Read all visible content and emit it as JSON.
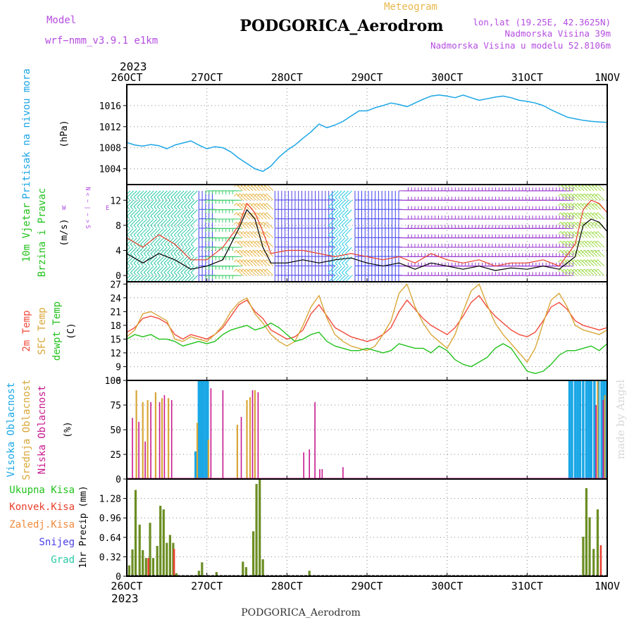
{
  "header": {
    "model_label": "Model",
    "model_name": "wrf−nmm_v3.9.1 e1km",
    "station_title": "PODGORICA_Aerodrom",
    "meteogram_label": "Meteogram",
    "coords": "lon,lat (19.25E, 42.3625N)",
    "elevation": "Nadmorska Visina 39m",
    "model_elevation": "Nadmorska Visina u modelu 52.8106m",
    "year_top": "2023",
    "year_bottom": "2023",
    "footer_station": "PODGORICA_Aerodrom",
    "watermark": "made by Angel"
  },
  "colors": {
    "pressure": "#1ca6e6",
    "t2m": "#f24b3c",
    "sfc": "#d9a637",
    "dewpt": "#22c21c",
    "high_cloud": "#1aa7e6",
    "mid_cloud": "#d9a637",
    "low_cloud": "#c8198f",
    "total_precip": "#6b8e23",
    "conv_precip": "#e8402e",
    "wind_label": "#22c21c",
    "compass": "#b44ce0",
    "header_purple": "#b44ce0",
    "header_orange": "#e8b84d"
  },
  "axes": {
    "x_ticks": [
      "26OCT",
      "27OCT",
      "28OCT",
      "29OCT",
      "30OCT",
      "31OCT",
      "1NOV"
    ]
  },
  "chart_data": [
    {
      "type": "line",
      "name": "pressure",
      "ylabel_lines": [
        "Pritisak na nivou mora",
        "(hPa)"
      ],
      "ylim": [
        1001,
        1020
      ],
      "yticks": [
        1004,
        1008,
        1012,
        1016
      ],
      "x_days": [
        0,
        0.1,
        0.2,
        0.3,
        0.4,
        0.5,
        0.6,
        0.7,
        0.8,
        0.9,
        1.0,
        1.1,
        1.2,
        1.3,
        1.4,
        1.5,
        1.6,
        1.7,
        1.8,
        1.9,
        2.0,
        2.1,
        2.2,
        2.3,
        2.4,
        2.5,
        2.6,
        2.7,
        2.8,
        2.9,
        3.0,
        3.1,
        3.2,
        3.3,
        3.4,
        3.5,
        3.6,
        3.7,
        3.8,
        3.9,
        4.0,
        4.1,
        4.2,
        4.3,
        4.4,
        4.5,
        4.6,
        4.7,
        4.8,
        4.9,
        5.0,
        5.1,
        5.2,
        5.3,
        5.4,
        5.5,
        5.6,
        5.7,
        5.8,
        5.9,
        6.0
      ],
      "values": [
        1009,
        1008.5,
        1008.3,
        1008.6,
        1008.4,
        1007.8,
        1008.5,
        1008.9,
        1009.3,
        1008.5,
        1007.8,
        1008.2,
        1008.0,
        1007.2,
        1006.0,
        1005.0,
        1004.0,
        1003.5,
        1004.5,
        1006.2,
        1007.5,
        1008.5,
        1009.8,
        1011.0,
        1012.5,
        1011.8,
        1012.3,
        1013.0,
        1014.0,
        1015.0,
        1015.0,
        1015.6,
        1016.0,
        1016.5,
        1016.2,
        1015.8,
        1016.5,
        1017.2,
        1017.8,
        1018.0,
        1017.8,
        1017.5,
        1018.0,
        1017.5,
        1017.0,
        1017.3,
        1017.6,
        1017.8,
        1017.5,
        1017.0,
        1016.8,
        1016.5,
        1016.0,
        1015.2,
        1014.5,
        1013.8,
        1013.5,
        1013.2,
        1013.0,
        1012.9,
        1012.8
      ]
    },
    {
      "type": "barbs",
      "name": "wind",
      "ylabel_lines": [
        "10m Vjetar",
        "Brzina i Pravac",
        "(m/s)"
      ],
      "compass": {
        "n": "N",
        "w": "W",
        "e": "E",
        "s": "S",
        "arrows": "< − | − >"
      },
      "ylim": [
        -1,
        14.5
      ],
      "yticks": [
        0,
        4,
        8,
        12
      ],
      "barb_rows_ms": [
        0,
        1.5,
        3,
        4.5,
        6,
        7.5,
        9,
        10.5,
        12,
        13.5
      ],
      "regimes": [
        {
          "x0": 0.0,
          "x1": 0.9,
          "color": "#27c8a6",
          "dir": "NE"
        },
        {
          "x0": 0.9,
          "x1": 1.1,
          "color": "#3c3cf0",
          "dir": "N"
        },
        {
          "x0": 1.1,
          "x1": 1.45,
          "color": "#3fcf6b",
          "dir": "E"
        },
        {
          "x0": 1.45,
          "x1": 1.85,
          "color": "#e8b84d",
          "dir": "SE"
        },
        {
          "x0": 1.85,
          "x1": 2.6,
          "color": "#4a40e8",
          "dir": "N"
        },
        {
          "x0": 2.6,
          "x1": 2.85,
          "color": "#27c8e6",
          "dir": "NE"
        },
        {
          "x0": 2.85,
          "x1": 3.4,
          "color": "#3c3cf0",
          "dir": "N"
        },
        {
          "x0": 3.4,
          "x1": 5.5,
          "color": "#9a3cd0",
          "dir": "W"
        },
        {
          "x0": 5.5,
          "x1": 6.0,
          "color": "#9fdc4a",
          "dir": "SE"
        }
      ],
      "speed_x_days": [
        0,
        0.2,
        0.4,
        0.6,
        0.8,
        1.0,
        1.2,
        1.4,
        1.5,
        1.6,
        1.7,
        1.8,
        2.0,
        2.2,
        2.4,
        2.6,
        2.8,
        3.0,
        3.2,
        3.4,
        3.6,
        3.8,
        4.0,
        4.2,
        4.4,
        4.6,
        4.8,
        5.0,
        5.2,
        5.4,
        5.6,
        5.7,
        5.8,
        5.9,
        6.0
      ],
      "speed": [
        3.5,
        2.0,
        3.5,
        2.5,
        1.0,
        1.5,
        2.5,
        7.5,
        10.5,
        9.0,
        4.5,
        2.0,
        2.0,
        2.5,
        2.0,
        2.5,
        2.8,
        2.0,
        1.5,
        2.0,
        1.0,
        2.0,
        1.5,
        1.0,
        1.5,
        0.8,
        1.2,
        1.0,
        1.5,
        1.0,
        3.0,
        8.0,
        9.0,
        8.5,
        7.0
      ],
      "gust": [
        6.0,
        4.5,
        6.5,
        5.0,
        2.5,
        2.5,
        4.5,
        8.0,
        11.5,
        10.0,
        7.0,
        3.5,
        4.0,
        4.0,
        3.5,
        3.0,
        3.5,
        3.0,
        2.5,
        3.0,
        2.0,
        3.5,
        2.5,
        2.0,
        2.5,
        1.5,
        2.0,
        2.0,
        2.5,
        1.5,
        5.0,
        10.5,
        12.0,
        11.5,
        10.0
      ]
    },
    {
      "type": "line",
      "name": "temperature",
      "ylabel_lines": [
        "2m Temp",
        "SFC Temp",
        "dewpt Temp",
        "(C)"
      ],
      "ylim": [
        6,
        27.5
      ],
      "yticks": [
        6,
        9,
        12,
        15,
        18,
        21,
        24,
        27
      ],
      "x_days": [
        0,
        0.1,
        0.2,
        0.3,
        0.4,
        0.5,
        0.6,
        0.7,
        0.8,
        0.9,
        1.0,
        1.1,
        1.2,
        1.3,
        1.4,
        1.5,
        1.6,
        1.7,
        1.8,
        1.9,
        2.0,
        2.1,
        2.2,
        2.3,
        2.4,
        2.5,
        2.6,
        2.7,
        2.8,
        2.9,
        3.0,
        3.1,
        3.2,
        3.3,
        3.4,
        3.5,
        3.6,
        3.7,
        3.8,
        3.9,
        4.0,
        4.1,
        4.2,
        4.3,
        4.4,
        4.5,
        4.6,
        4.7,
        4.8,
        4.9,
        5.0,
        5.1,
        5.2,
        5.3,
        5.4,
        5.5,
        5.6,
        5.7,
        5.8,
        5.9,
        6.0
      ],
      "series": [
        {
          "name": "2m Temp",
          "key": "t2m",
          "values": [
            16.5,
            17.5,
            19.5,
            20.0,
            19.5,
            18.5,
            16.0,
            15.0,
            16.0,
            15.5,
            15.0,
            16.0,
            17.5,
            20.0,
            22.5,
            23.5,
            21.0,
            19.5,
            17.0,
            16.0,
            15.0,
            15.5,
            17.0,
            20.5,
            22.5,
            20.0,
            17.5,
            16.5,
            15.5,
            15.0,
            14.5,
            15.0,
            16.0,
            17.5,
            21.0,
            23.5,
            21.5,
            19.5,
            18.0,
            17.0,
            16.0,
            17.5,
            20.0,
            23.0,
            24.5,
            22.0,
            20.0,
            18.5,
            17.0,
            16.0,
            15.5,
            16.5,
            19.0,
            22.0,
            23.0,
            21.5,
            19.0,
            18.0,
            17.5,
            17.0,
            17.5
          ]
        },
        {
          "name": "SFC Temp",
          "key": "sfc",
          "values": [
            15.5,
            17.0,
            20.5,
            21.0,
            20.0,
            19.0,
            15.0,
            14.5,
            15.5,
            15.0,
            14.5,
            16.0,
            18.0,
            21.0,
            23.0,
            24.0,
            20.5,
            18.5,
            16.0,
            14.5,
            13.5,
            14.5,
            18.0,
            22.0,
            24.5,
            19.5,
            16.0,
            14.5,
            13.5,
            13.0,
            12.5,
            13.5,
            16.0,
            19.0,
            25.0,
            27.0,
            22.0,
            18.5,
            16.0,
            14.5,
            13.0,
            16.0,
            21.0,
            25.5,
            27.0,
            22.5,
            18.5,
            16.0,
            14.0,
            12.0,
            10.0,
            13.0,
            18.5,
            23.5,
            25.0,
            22.0,
            18.0,
            17.0,
            16.5,
            16.0,
            17.0
          ]
        },
        {
          "name": "dewpt Temp",
          "key": "dewpt",
          "values": [
            15.0,
            16.0,
            15.5,
            16.0,
            15.0,
            15.0,
            14.5,
            13.5,
            14.0,
            14.5,
            14.0,
            14.5,
            16.0,
            17.0,
            17.5,
            18.0,
            17.0,
            17.5,
            18.5,
            17.5,
            16.0,
            14.5,
            15.0,
            16.0,
            16.5,
            14.5,
            13.5,
            13.0,
            12.5,
            12.5,
            13.0,
            12.5,
            12.0,
            12.5,
            14.0,
            13.5,
            13.0,
            13.0,
            12.0,
            13.5,
            12.5,
            10.5,
            9.5,
            9.0,
            10.0,
            11.0,
            13.0,
            14.0,
            13.0,
            10.5,
            8.0,
            7.5,
            8.0,
            9.5,
            11.5,
            12.5,
            12.5,
            13.0,
            13.5,
            12.5,
            14.0
          ]
        }
      ]
    },
    {
      "type": "bar",
      "name": "cloud_cover",
      "ylabel_lines": [
        "Visoka Oblacnost",
        "Srednja Oblacnost",
        "Niska Oblacnost",
        "(%)"
      ],
      "ylim": [
        0,
        100
      ],
      "yticks": [
        0,
        25,
        50,
        75,
        100
      ],
      "series": [
        {
          "name": "Visoka Oblacnost",
          "key": "high_cloud",
          "points": [
            [
              0.86,
              28
            ],
            [
              0.9,
              100
            ],
            [
              0.93,
              100
            ],
            [
              0.96,
              100
            ],
            [
              0.99,
              100
            ],
            [
              1.01,
              100
            ],
            [
              5.53,
              100
            ],
            [
              5.56,
              100
            ],
            [
              5.6,
              100
            ],
            [
              5.63,
              100
            ],
            [
              5.66,
              100
            ],
            [
              5.7,
              100
            ],
            [
              5.74,
              100
            ],
            [
              5.77,
              100
            ],
            [
              5.8,
              100
            ],
            [
              5.84,
              100
            ],
            [
              5.89,
              100
            ],
            [
              5.93,
              100
            ],
            [
              5.96,
              100
            ],
            [
              5.99,
              100
            ]
          ]
        },
        {
          "name": "Srednja Oblacnost",
          "key": "mid_cloud",
          "points": [
            [
              0.12,
              90
            ],
            [
              0.2,
              78
            ],
            [
              0.26,
              80
            ],
            [
              0.36,
              88
            ],
            [
              0.44,
              82
            ],
            [
              0.52,
              82
            ],
            [
              0.88,
              57
            ],
            [
              1.02,
              40
            ],
            [
              1.38,
              55
            ],
            [
              1.5,
              80
            ],
            [
              1.54,
              83
            ],
            [
              1.6,
              90
            ],
            [
              5.88,
              100
            ],
            [
              5.97,
              85
            ]
          ]
        },
        {
          "name": "Niska Oblacnost",
          "key": "low_cloud",
          "points": [
            [
              0.07,
              62
            ],
            [
              0.15,
              58
            ],
            [
              0.23,
              38
            ],
            [
              0.3,
              78
            ],
            [
              0.41,
              78
            ],
            [
              0.47,
              85
            ],
            [
              0.56,
              80
            ],
            [
              1.05,
              92
            ],
            [
              1.2,
              90
            ],
            [
              1.43,
              63
            ],
            [
              1.57,
              90
            ],
            [
              1.64,
              88
            ],
            [
              2.21,
              27
            ],
            [
              2.28,
              30
            ],
            [
              2.35,
              78
            ],
            [
              2.41,
              10
            ],
            [
              2.44,
              10
            ],
            [
              2.7,
              12
            ],
            [
              5.86,
              75
            ],
            [
              5.95,
              80
            ],
            [
              6.0,
              78
            ]
          ]
        }
      ]
    },
    {
      "type": "bar",
      "name": "precipitation",
      "ylabel_lines": [
        "1hr Precip (mm)"
      ],
      "legend": [
        "Ukupna Kisa",
        "Konvek.Kisa",
        "Zaledj.Kisa",
        "Snijeg",
        "Grad"
      ],
      "ylim": [
        0,
        1.6
      ],
      "yticks": [
        0,
        0.32,
        0.64,
        0.96,
        1.28
      ],
      "series": [
        {
          "name": "Ukupna Kisa",
          "key": "total_precip",
          "points": [
            [
              0.03,
              0.18
            ],
            [
              0.07,
              0.44
            ],
            [
              0.11,
              1.42
            ],
            [
              0.16,
              0.85
            ],
            [
              0.2,
              0.43
            ],
            [
              0.24,
              0.3
            ],
            [
              0.29,
              0.88
            ],
            [
              0.33,
              0.3
            ],
            [
              0.38,
              0.5
            ],
            [
              0.42,
              1.16
            ],
            [
              0.46,
              1.1
            ],
            [
              0.5,
              0.55
            ],
            [
              0.54,
              0.68
            ],
            [
              0.58,
              0.55
            ],
            [
              0.62,
              0.05
            ],
            [
              0.9,
              0.09
            ],
            [
              0.94,
              0.23
            ],
            [
              1.12,
              0.07
            ],
            [
              1.45,
              0.24
            ],
            [
              1.49,
              0.15
            ],
            [
              1.58,
              0.74
            ],
            [
              1.62,
              1.52
            ],
            [
              1.66,
              1.6
            ],
            [
              1.7,
              0.28
            ],
            [
              2.28,
              0.09
            ],
            [
              5.7,
              0.65
            ],
            [
              5.74,
              1.45
            ],
            [
              5.78,
              0.97
            ],
            [
              5.83,
              0.45
            ],
            [
              5.88,
              1.1
            ]
          ]
        },
        {
          "name": "Konvek.Kisa",
          "key": "conv_precip",
          "points": [
            [
              0.27,
              0.3
            ],
            [
              0.59,
              0.45
            ],
            [
              5.92,
              0.51
            ]
          ]
        }
      ]
    }
  ]
}
